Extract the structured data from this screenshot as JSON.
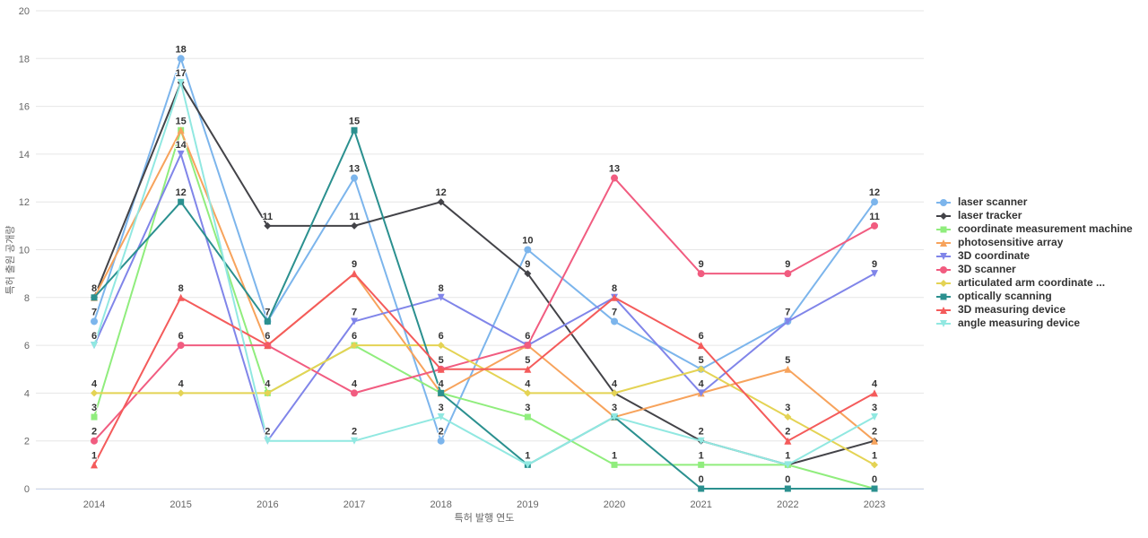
{
  "chart_data": {
    "type": "line",
    "x": [
      2014,
      2015,
      2016,
      2017,
      2018,
      2019,
      2020,
      2021,
      2022,
      2023
    ],
    "xlabel": "특허 발행 연도",
    "ylabel": "특허 출원 공개량",
    "ylim": [
      0,
      20
    ],
    "ytick_step": 2,
    "grid": true,
    "legend_position": "right",
    "series": [
      {
        "name": "laser scanner",
        "color": "#7cb5ec",
        "marker": "circle",
        "values": [
          7,
          18,
          7,
          13,
          2,
          10,
          7,
          5,
          7,
          12
        ]
      },
      {
        "name": "laser tracker",
        "color": "#434348",
        "marker": "diamond",
        "values": [
          8,
          17,
          11,
          11,
          12,
          9,
          4,
          2,
          1,
          2
        ]
      },
      {
        "name": "coordinate measurement machine",
        "color": "#90ed7d",
        "marker": "square",
        "values": [
          3,
          15,
          4,
          6,
          4,
          3,
          1,
          1,
          1,
          0
        ]
      },
      {
        "name": "photosensitive array",
        "color": "#f7a35c",
        "marker": "triangle",
        "values": [
          8,
          15,
          6,
          9,
          4,
          6,
          3,
          4,
          5,
          2
        ]
      },
      {
        "name": "3D coordinate",
        "color": "#8085e9",
        "marker": "triangle-down",
        "values": [
          6,
          14,
          2,
          7,
          8,
          6,
          8,
          4,
          7,
          9
        ]
      },
      {
        "name": "3D scanner",
        "color": "#f15c80",
        "marker": "circle",
        "values": [
          2,
          6,
          6,
          4,
          5,
          6,
          13,
          9,
          9,
          11
        ]
      },
      {
        "name": "articulated arm coordinate ...",
        "color": "#e4d354",
        "marker": "diamond",
        "values": [
          4,
          4,
          4,
          6,
          6,
          4,
          4,
          5,
          3,
          1
        ]
      },
      {
        "name": "optically scanning",
        "color": "#2b908f",
        "marker": "square",
        "values": [
          8,
          12,
          7,
          15,
          4,
          1,
          3,
          0,
          0,
          0
        ]
      },
      {
        "name": "3D measuring device",
        "color": "#f45b5b",
        "marker": "triangle",
        "values": [
          1,
          8,
          6,
          9,
          5,
          5,
          8,
          6,
          2,
          4
        ]
      },
      {
        "name": "angle measuring device",
        "color": "#91e8e1",
        "marker": "triangle-down",
        "values": [
          6,
          17,
          2,
          2,
          3,
          1,
          3,
          2,
          1,
          3
        ]
      }
    ]
  },
  "styles": {
    "grid_color": "#e6e6e6",
    "axis_line_color": "#ccd6eb",
    "tick_label_color": "#666666",
    "axis_title_color": "#666666",
    "legend_text_color": "#333333",
    "data_label_color": "#333333",
    "background_color": "#ffffff"
  }
}
